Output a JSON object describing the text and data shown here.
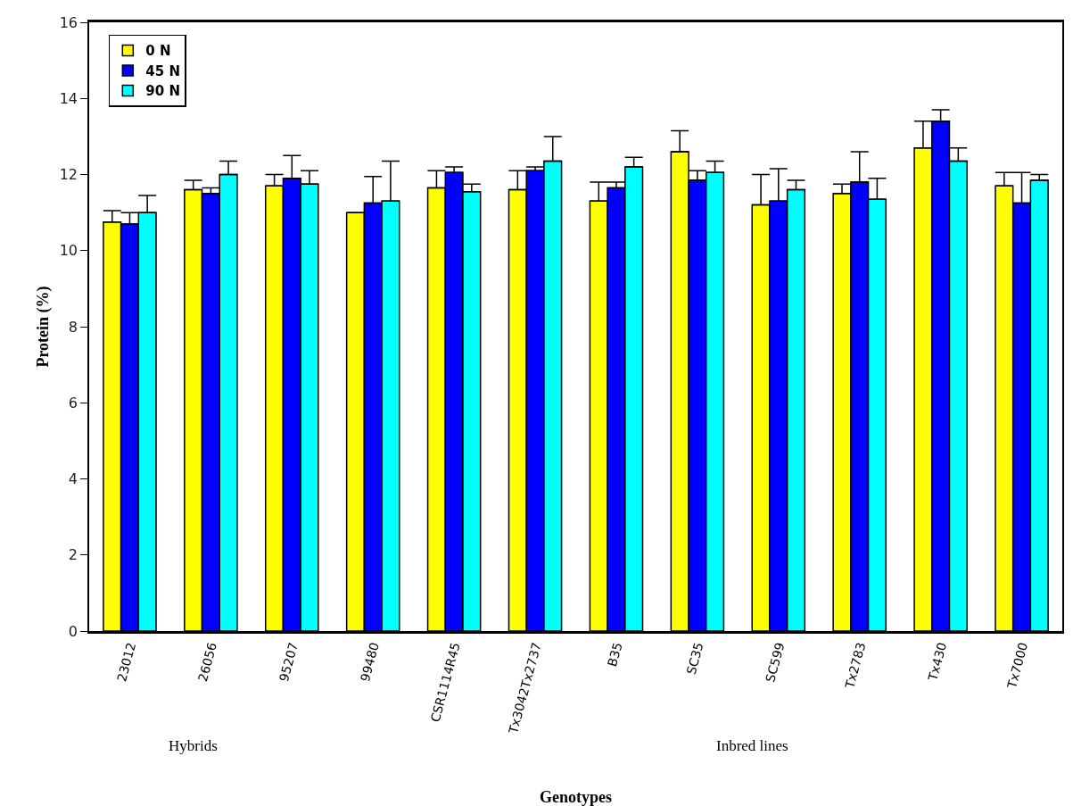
{
  "chart_data": {
    "type": "bar",
    "xlabel": "Genotypes",
    "ylabel": "Protein (%)",
    "categories": [
      "23012",
      "26056",
      "95207",
      "99480",
      "CSR1114R45",
      "Tx3042Tx2737",
      "B35",
      "SC35",
      "SC599",
      "Tx2783",
      "Tx430",
      "Tx7000"
    ],
    "series": [
      {
        "name": "0 N",
        "color": "#ffff00",
        "values": [
          10.75,
          11.6,
          11.7,
          11.0,
          11.65,
          11.6,
          11.3,
          12.6,
          11.2,
          11.5,
          12.7,
          11.7
        ],
        "errors": [
          [
            10.75,
            11.05
          ],
          [
            11.6,
            11.85
          ],
          [
            11.7,
            12.0
          ],
          null,
          [
            11.65,
            12.1
          ],
          [
            11.6,
            12.1
          ],
          [
            11.3,
            11.8
          ],
          [
            12.6,
            13.15
          ],
          [
            11.2,
            12.0
          ],
          [
            11.5,
            11.75
          ],
          [
            12.7,
            13.4
          ],
          [
            11.7,
            12.05
          ]
        ]
      },
      {
        "name": "45 N",
        "color": "#0000ff",
        "values": [
          10.7,
          11.5,
          11.9,
          11.25,
          12.05,
          12.1,
          11.65,
          11.85,
          11.3,
          11.8,
          13.4,
          11.25
        ],
        "errors": [
          [
            10.7,
            11.0
          ],
          [
            11.5,
            11.65
          ],
          [
            11.9,
            12.5
          ],
          [
            11.25,
            11.95
          ],
          [
            12.05,
            12.2
          ],
          [
            12.1,
            12.2
          ],
          [
            11.65,
            11.8
          ],
          [
            11.85,
            12.1
          ],
          [
            11.3,
            12.15
          ],
          [
            11.8,
            12.6
          ],
          [
            13.4,
            13.7
          ],
          [
            11.25,
            12.05
          ]
        ]
      },
      {
        "name": "90 N",
        "color": "#00ffff",
        "values": [
          11.0,
          12.0,
          11.75,
          11.3,
          11.55,
          12.35,
          12.2,
          12.05,
          11.6,
          11.35,
          12.35,
          11.85
        ],
        "errors": [
          [
            11.0,
            11.45
          ],
          [
            12.0,
            12.35
          ],
          [
            11.75,
            12.1
          ],
          [
            11.3,
            12.35
          ],
          [
            11.55,
            11.75
          ],
          [
            12.35,
            13.0
          ],
          [
            12.2,
            12.45
          ],
          [
            12.05,
            12.35
          ],
          [
            11.6,
            11.85
          ],
          [
            11.35,
            11.9
          ],
          [
            12.35,
            12.7
          ],
          [
            11.85,
            12.0
          ]
        ]
      }
    ],
    "ylim": [
      0,
      16
    ],
    "yticks": [
      0,
      2,
      4,
      6,
      8,
      10,
      12,
      14,
      16
    ],
    "grid": false,
    "legend": "top left",
    "annotations": [
      "Hybrids",
      "Inbred lines"
    ]
  }
}
